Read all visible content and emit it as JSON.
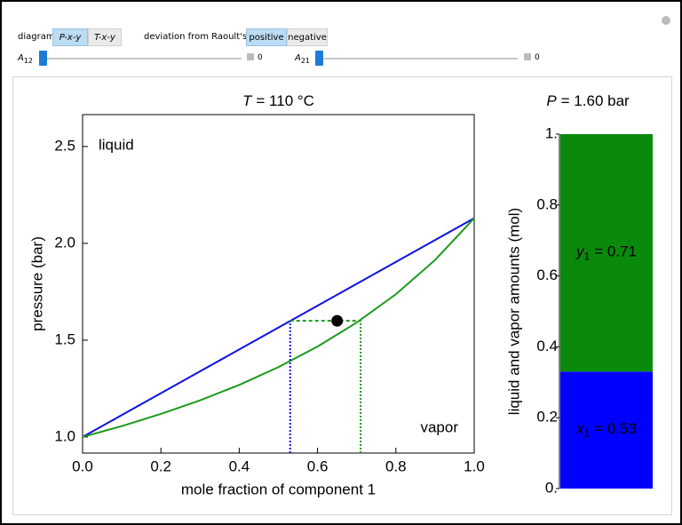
{
  "controls": {
    "diagram": {
      "label": "diagram",
      "options": [
        "P-x-y",
        "T-x-y"
      ]
    },
    "deviation": {
      "label": "deviation from Raoult's law",
      "options": [
        "positive",
        "negative"
      ]
    },
    "sliders": [
      {
        "symbol": "A",
        "subscript": "12",
        "value": 0
      },
      {
        "symbol": "A",
        "subscript": "21",
        "value": 0
      }
    ]
  },
  "chart_data": [
    {
      "type": "line",
      "title": {
        "symbol": "T",
        "text": "= 110 °C"
      },
      "x_label": "mole fraction of component 1",
      "y_label": "pressure (bar)",
      "xlim": [
        0,
        1
      ],
      "ylim": [
        0.917,
        2.665
      ],
      "xticks": [
        {
          "value": 0,
          "label": "0.0"
        },
        0.2,
        0.4,
        0.6,
        0.8,
        {
          "value": 1,
          "label": "1.0"
        }
      ],
      "yticks": [
        {
          "value": 1,
          "label": "1.0"
        },
        1.5,
        {
          "value": 2,
          "label": "2.0"
        },
        2.5
      ],
      "annotations": [
        "liquid",
        "vapor"
      ],
      "series": [
        {
          "color": "#1010e0",
          "x": [
            0,
            0.1,
            0.2,
            0.3,
            0.4,
            0.5,
            0.6,
            0.7,
            0.8,
            0.9,
            1.0
          ],
          "values": [
            1.0,
            1.113,
            1.226,
            1.339,
            1.452,
            1.565,
            1.678,
            1.791,
            1.904,
            2.017,
            2.13
          ]
        },
        {
          "color": "#1a9a1a",
          "x": [
            0,
            0.1,
            0.2,
            0.3,
            0.4,
            0.5,
            0.6,
            0.7,
            0.8,
            0.9,
            1.0
          ],
          "values": [
            1.0,
            1.056,
            1.119,
            1.189,
            1.269,
            1.361,
            1.467,
            1.591,
            1.737,
            1.914,
            2.13
          ]
        },
        {
          "color": "#1a9a1a",
          "dash": "dashed",
          "x": [
            0.53,
            0.71
          ],
          "values": [
            1.6,
            1.6
          ]
        },
        {
          "color": "#1010e0",
          "dash": "dotted",
          "x": [
            0.53,
            0.53
          ],
          "values": [
            0.917,
            1.6
          ]
        },
        {
          "color": "#1a9a1a",
          "dash": "dotted",
          "x": [
            0.71,
            0.71
          ],
          "values": [
            0.917,
            1.6
          ]
        },
        {
          "color": "#000000",
          "marker": true,
          "x": [
            0.65
          ],
          "values": [
            1.6
          ]
        }
      ]
    },
    {
      "type": "stacked_bar",
      "title": {
        "symbol": "P",
        "text": "= 1.60 bar"
      },
      "y_label": "liquid and vapor amounts (mol)",
      "ylim": [
        0,
        1
      ],
      "yticks": [
        {
          "value": 0,
          "label": "0."
        },
        0.2,
        0.4,
        0.6,
        0.8,
        {
          "value": 1,
          "label": "1."
        }
      ],
      "series": [
        {
          "color": "#0000ff",
          "values": [
            0.33
          ],
          "value_labels": [
            {
              "symbol": "x",
              "subscript": "1",
              "text": "= 0.53"
            }
          ]
        },
        {
          "color": "#0a8a0a",
          "values": [
            0.67
          ],
          "value_labels": [
            {
              "symbol": "y",
              "subscript": "1",
              "text": "= 0.71"
            }
          ]
        }
      ]
    }
  ]
}
